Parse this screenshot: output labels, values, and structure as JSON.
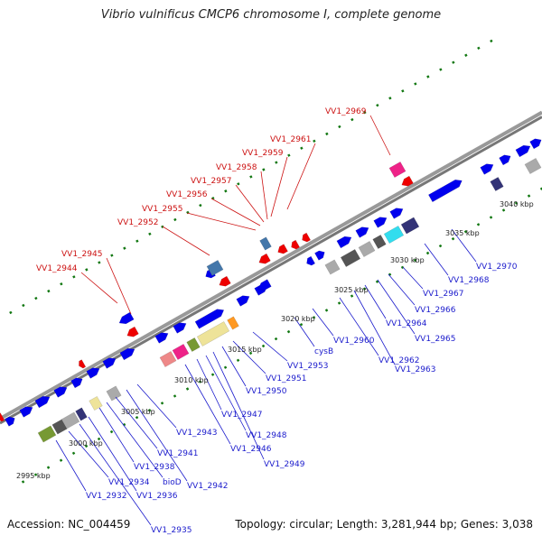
{
  "title": "Vibrio vulnificus CMCP6 chromosome I, complete genome",
  "footer": {
    "accession": "Accession: NC_004459",
    "summary": "Topology: circular; Length: 3,281,944 bp; Genes: 3,038"
  },
  "colors": {
    "backbone": "#888888",
    "forward_gene": "#0000ee",
    "reverse_gene": "#ee0000",
    "label_blue": "#1a1acc",
    "label_red": "#cc1111",
    "tick": "#117711",
    "pink": "#ee2288",
    "cyan": "#33ddee",
    "olive": "#779933",
    "khaki": "#eee399",
    "steel": "#4477aa",
    "salmon": "#ee8888",
    "orange": "#ff9922",
    "grey": "#aaaaaa",
    "dark_grey": "#555555",
    "navy": "#333377"
  },
  "kbp_ticks": [
    "2995 kbp",
    "3000 kbp",
    "3005 kbp",
    "3010 kbp",
    "3015 kbp",
    "3020 kbp",
    "3025 kbp",
    "3030 kbp",
    "3035 kbp",
    "3040 kbp"
  ],
  "top_labels": [
    "VV1_2944",
    "VV1_2945",
    "VV1_2952",
    "VV1_2955",
    "VV1_2956",
    "VV1_2957",
    "VV1_2958",
    "VV1_2959",
    "VV1_2961",
    "VV1_2969"
  ],
  "bottom_labels": [
    "VV1_2932",
    "VV1_2934",
    "VV1_2935",
    "VV1_2936",
    "VV1_2938",
    "bioD",
    "VV1_2941",
    "VV1_2942",
    "VV1_2943",
    "VV1_2946",
    "VV1_2947",
    "VV1_2948",
    "VV1_2949",
    "VV1_2950",
    "VV1_2951",
    "VV1_2953",
    "cysB",
    "VV1_2960",
    "VV1_2962",
    "VV1_2963",
    "VV1_2964",
    "VV1_2965",
    "VV1_2966",
    "VV1_2967",
    "VV1_2968",
    "VV1_2970"
  ]
}
